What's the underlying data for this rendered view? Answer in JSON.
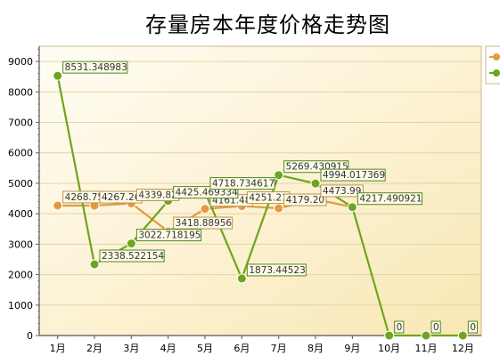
{
  "chart_data": {
    "type": "line",
    "title": "存量房本年度价格走势图",
    "categories": [
      "1月",
      "2月",
      "3月",
      "4月",
      "5月",
      "6月",
      "7月",
      "8月",
      "9月",
      "10月",
      "11月",
      "12月"
    ],
    "ylim": [
      0,
      9500
    ],
    "yticks": [
      0,
      1000,
      2000,
      3000,
      4000,
      5000,
      6000,
      7000,
      8000,
      9000
    ],
    "grid": true,
    "legend": "top-right",
    "series": [
      {
        "color": "#e49a3c",
        "values": [
          4268.75,
          4267.26,
          4339.82,
          3418.88956,
          4161.48,
          4251.21,
          4179.2,
          4473.99,
          4217.49,
          null,
          null,
          null
        ],
        "labels": [
          "4268.75",
          "4267.26",
          "4339.82",
          "3418.88956",
          "4161.48",
          "4251.21",
          "4179.20",
          "4473.99",
          "",
          "",
          "",
          ""
        ]
      },
      {
        "color": "#6ea51f",
        "values": [
          8531.348983,
          2338.522154,
          3022.718195,
          4425.469334,
          4718.734617,
          1873.44523,
          5269.430915,
          4994.017369,
          4217.490921,
          0,
          0,
          0
        ],
        "labels": [
          "8531.348983",
          "2338.522154",
          "3022.718195",
          "4425.469334",
          "4718.734617",
          "1873.44523",
          "5269.430915",
          "4994.017369",
          "4217.490921",
          "0",
          "0",
          "0"
        ]
      }
    ]
  }
}
